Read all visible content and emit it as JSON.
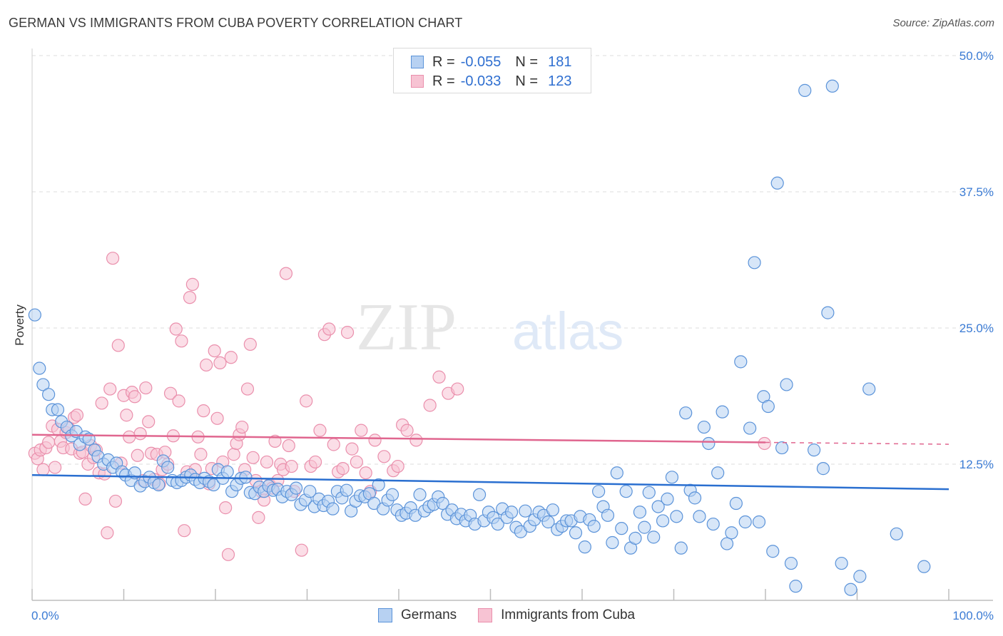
{
  "header": {
    "title": "GERMAN VS IMMIGRANTS FROM CUBA POVERTY CORRELATION CHART",
    "source": "Source: ZipAtlas.com"
  },
  "watermark": {
    "zip": "ZIP",
    "atlas": "atlas"
  },
  "legend": {
    "rows": [
      {
        "r_label": "R =",
        "r_value": "-0.055",
        "n_label": "N =",
        "n_value": "181"
      },
      {
        "r_label": "R =",
        "r_value": "-0.033",
        "n_label": "N =",
        "n_value": "123"
      }
    ],
    "bottom": [
      "Germans",
      "Immigrants from Cuba"
    ]
  },
  "colors": {
    "germans_fill": "#b7d1f2",
    "germans_stroke": "#5b93d9",
    "germans_line": "#2a6fd0",
    "cuba_fill": "#f7c3d3",
    "cuba_stroke": "#ea8fac",
    "cuba_line": "#e0668f",
    "tick": "#3b7bd4",
    "grid": "#dddddd"
  },
  "chart_data": {
    "type": "scatter",
    "title": "GERMAN VS IMMIGRANTS FROM CUBA POVERTY CORRELATION CHART",
    "xlabel": "",
    "ylabel": "Poverty",
    "xlim": [
      0,
      100
    ],
    "ylim": [
      0,
      50
    ],
    "x_tick_labels": [
      "0.0%",
      "100.0%"
    ],
    "y_ticks": [
      12.5,
      25,
      37.5,
      50
    ],
    "y_tick_labels": [
      "12.5%",
      "25.0%",
      "37.5%",
      "50.0%"
    ],
    "grid": "horizontal dashed",
    "legend_position": "top-center",
    "series": [
      {
        "name": "Germans",
        "trend": {
          "x": [
            0,
            100
          ],
          "y": [
            11.5,
            10.2
          ]
        },
        "points": [
          [
            0.3,
            26.2
          ],
          [
            0.8,
            21.3
          ],
          [
            1.2,
            19.8
          ],
          [
            1.8,
            18.9
          ],
          [
            2.2,
            17.5
          ],
          [
            2.8,
            17.5
          ],
          [
            3.2,
            16.4
          ],
          [
            3.8,
            15.9
          ],
          [
            4.3,
            15.1
          ],
          [
            4.8,
            15.5
          ],
          [
            5.2,
            14.3
          ],
          [
            5.8,
            15.0
          ],
          [
            6.2,
            14.8
          ],
          [
            6.8,
            13.8
          ],
          [
            7.2,
            13.2
          ],
          [
            7.8,
            12.5
          ],
          [
            8.3,
            12.9
          ],
          [
            8.8,
            12.2
          ],
          [
            9.2,
            12.6
          ],
          [
            9.8,
            11.8
          ],
          [
            10.2,
            11.5
          ],
          [
            10.8,
            11.0
          ],
          [
            11.2,
            11.7
          ],
          [
            11.8,
            10.5
          ],
          [
            12.3,
            10.9
          ],
          [
            12.8,
            11.3
          ],
          [
            13.3,
            10.8
          ],
          [
            13.8,
            10.6
          ],
          [
            14.3,
            12.8
          ],
          [
            14.8,
            12.2
          ],
          [
            15.3,
            11.0
          ],
          [
            15.8,
            10.8
          ],
          [
            16.3,
            11.0
          ],
          [
            16.8,
            11.3
          ],
          [
            17.3,
            11.5
          ],
          [
            17.8,
            11.1
          ],
          [
            18.3,
            10.8
          ],
          [
            18.8,
            11.2
          ],
          [
            19.3,
            10.9
          ],
          [
            19.8,
            10.6
          ],
          [
            20.3,
            12.0
          ],
          [
            20.8,
            11.2
          ],
          [
            21.3,
            11.8
          ],
          [
            21.8,
            10.0
          ],
          [
            22.3,
            10.6
          ],
          [
            22.8,
            11.2
          ],
          [
            23.3,
            11.3
          ],
          [
            23.8,
            9.9
          ],
          [
            24.3,
            9.8
          ],
          [
            24.8,
            10.4
          ],
          [
            25.3,
            10.0
          ],
          [
            25.8,
            10.5
          ],
          [
            26.3,
            10.1
          ],
          [
            26.8,
            10.2
          ],
          [
            27.3,
            9.5
          ],
          [
            27.8,
            10.0
          ],
          [
            28.3,
            9.7
          ],
          [
            28.8,
            10.3
          ],
          [
            29.3,
            8.8
          ],
          [
            29.8,
            9.2
          ],
          [
            30.3,
            10.0
          ],
          [
            30.8,
            8.6
          ],
          [
            31.3,
            9.3
          ],
          [
            31.8,
            8.7
          ],
          [
            32.3,
            9.1
          ],
          [
            32.8,
            8.4
          ],
          [
            33.3,
            10.0
          ],
          [
            33.8,
            9.4
          ],
          [
            34.3,
            10.1
          ],
          [
            34.8,
            8.2
          ],
          [
            35.3,
            9.1
          ],
          [
            35.8,
            9.6
          ],
          [
            36.3,
            9.5
          ],
          [
            36.8,
            9.8
          ],
          [
            37.3,
            8.9
          ],
          [
            37.8,
            10.6
          ],
          [
            38.3,
            8.4
          ],
          [
            38.8,
            9.2
          ],
          [
            39.3,
            9.7
          ],
          [
            39.8,
            8.3
          ],
          [
            40.3,
            7.8
          ],
          [
            40.8,
            8.0
          ],
          [
            41.3,
            8.5
          ],
          [
            41.8,
            7.8
          ],
          [
            42.3,
            9.7
          ],
          [
            42.8,
            8.2
          ],
          [
            43.3,
            8.6
          ],
          [
            43.8,
            8.8
          ],
          [
            44.3,
            9.5
          ],
          [
            44.8,
            8.9
          ],
          [
            45.3,
            7.9
          ],
          [
            45.8,
            8.3
          ],
          [
            46.3,
            7.5
          ],
          [
            46.8,
            7.9
          ],
          [
            47.3,
            7.3
          ],
          [
            47.8,
            7.8
          ],
          [
            48.3,
            7.0
          ],
          [
            48.8,
            9.7
          ],
          [
            49.3,
            7.3
          ],
          [
            49.8,
            8.1
          ],
          [
            50.3,
            7.6
          ],
          [
            50.8,
            7.0
          ],
          [
            51.3,
            8.4
          ],
          [
            51.8,
            7.6
          ],
          [
            52.3,
            8.1
          ],
          [
            52.8,
            6.7
          ],
          [
            53.3,
            6.3
          ],
          [
            53.8,
            8.2
          ],
          [
            54.3,
            6.8
          ],
          [
            54.8,
            7.4
          ],
          [
            55.3,
            8.1
          ],
          [
            55.8,
            7.8
          ],
          [
            56.3,
            7.2
          ],
          [
            56.8,
            8.3
          ],
          [
            57.3,
            6.5
          ],
          [
            57.8,
            6.8
          ],
          [
            58.3,
            7.3
          ],
          [
            58.8,
            7.3
          ],
          [
            59.3,
            6.2
          ],
          [
            59.8,
            7.7
          ],
          [
            60.3,
            4.9
          ],
          [
            60.8,
            7.4
          ],
          [
            61.3,
            6.8
          ],
          [
            61.8,
            10.0
          ],
          [
            62.3,
            8.6
          ],
          [
            62.8,
            7.8
          ],
          [
            63.3,
            5.3
          ],
          [
            63.8,
            11.7
          ],
          [
            64.3,
            6.6
          ],
          [
            64.8,
            10.0
          ],
          [
            65.3,
            4.8
          ],
          [
            65.8,
            5.7
          ],
          [
            66.3,
            8.1
          ],
          [
            66.8,
            6.7
          ],
          [
            67.3,
            9.9
          ],
          [
            67.8,
            5.8
          ],
          [
            68.3,
            8.6
          ],
          [
            68.8,
            7.3
          ],
          [
            69.3,
            9.3
          ],
          [
            69.8,
            11.3
          ],
          [
            70.3,
            7.7
          ],
          [
            70.8,
            4.8
          ],
          [
            71.3,
            17.2
          ],
          [
            71.8,
            10.1
          ],
          [
            72.3,
            9.4
          ],
          [
            72.8,
            7.7
          ],
          [
            73.3,
            15.9
          ],
          [
            73.8,
            14.4
          ],
          [
            74.3,
            7.0
          ],
          [
            74.8,
            11.7
          ],
          [
            75.3,
            17.3
          ],
          [
            75.8,
            5.2
          ],
          [
            76.3,
            6.2
          ],
          [
            76.8,
            8.9
          ],
          [
            77.3,
            21.9
          ],
          [
            77.8,
            7.2
          ],
          [
            78.3,
            15.8
          ],
          [
            78.8,
            31.0
          ],
          [
            79.3,
            7.2
          ],
          [
            79.8,
            18.7
          ],
          [
            80.3,
            17.8
          ],
          [
            80.8,
            4.5
          ],
          [
            81.3,
            38.3
          ],
          [
            81.8,
            14.0
          ],
          [
            82.3,
            19.8
          ],
          [
            82.8,
            3.4
          ],
          [
            83.3,
            1.3
          ],
          [
            84.3,
            46.8
          ],
          [
            85.3,
            13.8
          ],
          [
            86.3,
            12.1
          ],
          [
            86.8,
            26.4
          ],
          [
            87.3,
            47.2
          ],
          [
            88.3,
            3.4
          ],
          [
            89.3,
            1.0
          ],
          [
            90.3,
            2.2
          ],
          [
            91.3,
            19.4
          ],
          [
            94.3,
            6.1
          ],
          [
            97.3,
            3.1
          ]
        ]
      },
      {
        "name": "Immigrants from Cuba",
        "trend": {
          "x": [
            0,
            80
          ],
          "y": [
            15.2,
            14.5
          ]
        },
        "points": [
          [
            0.3,
            13.5
          ],
          [
            0.6,
            13.0
          ],
          [
            0.9,
            13.8
          ],
          [
            1.2,
            12.0
          ],
          [
            1.5,
            14.0
          ],
          [
            1.8,
            14.5
          ],
          [
            2.2,
            16.0
          ],
          [
            2.5,
            12.2
          ],
          [
            2.8,
            15.7
          ],
          [
            3.1,
            14.6
          ],
          [
            3.4,
            14.0
          ],
          [
            3.7,
            15.4
          ],
          [
            4.0,
            15.8
          ],
          [
            4.3,
            13.9
          ],
          [
            4.6,
            16.8
          ],
          [
            4.9,
            17.0
          ],
          [
            5.2,
            13.5
          ],
          [
            5.5,
            13.6
          ],
          [
            5.8,
            9.3
          ],
          [
            6.1,
            12.5
          ],
          [
            6.4,
            14.2
          ],
          [
            6.7,
            13.1
          ],
          [
            7.0,
            13.8
          ],
          [
            7.3,
            11.7
          ],
          [
            7.6,
            18.1
          ],
          [
            7.9,
            11.6
          ],
          [
            8.2,
            6.2
          ],
          [
            8.5,
            19.4
          ],
          [
            8.8,
            31.4
          ],
          [
            9.1,
            9.1
          ],
          [
            9.4,
            23.4
          ],
          [
            9.7,
            12.6
          ],
          [
            10.0,
            18.8
          ],
          [
            10.3,
            17.0
          ],
          [
            10.6,
            15.0
          ],
          [
            10.9,
            19.1
          ],
          [
            11.2,
            18.7
          ],
          [
            11.5,
            13.3
          ],
          [
            11.8,
            15.3
          ],
          [
            12.1,
            11.0
          ],
          [
            12.4,
            19.5
          ],
          [
            12.7,
            16.4
          ],
          [
            13.0,
            13.5
          ],
          [
            13.3,
            11.1
          ],
          [
            13.6,
            13.4
          ],
          [
            13.9,
            10.7
          ],
          [
            14.2,
            12.0
          ],
          [
            14.5,
            13.6
          ],
          [
            14.8,
            12.5
          ],
          [
            15.1,
            19.0
          ],
          [
            15.4,
            15.1
          ],
          [
            15.7,
            24.9
          ],
          [
            16.0,
            18.3
          ],
          [
            16.3,
            23.8
          ],
          [
            16.6,
            6.4
          ],
          [
            16.9,
            11.8
          ],
          [
            17.2,
            27.8
          ],
          [
            17.5,
            29.0
          ],
          [
            17.8,
            12.0
          ],
          [
            18.1,
            15.0
          ],
          [
            18.4,
            13.4
          ],
          [
            18.7,
            17.4
          ],
          [
            19.0,
            21.6
          ],
          [
            19.3,
            10.7
          ],
          [
            19.6,
            12.1
          ],
          [
            19.9,
            22.9
          ],
          [
            20.2,
            16.7
          ],
          [
            20.5,
            21.8
          ],
          [
            20.8,
            12.7
          ],
          [
            21.1,
            8.5
          ],
          [
            21.4,
            4.2
          ],
          [
            21.7,
            22.3
          ],
          [
            22.0,
            13.4
          ],
          [
            22.3,
            14.4
          ],
          [
            22.6,
            15.2
          ],
          [
            22.9,
            15.9
          ],
          [
            23.2,
            12.0
          ],
          [
            23.5,
            19.4
          ],
          [
            23.8,
            23.5
          ],
          [
            24.1,
            13.1
          ],
          [
            24.4,
            11.0
          ],
          [
            24.7,
            7.6
          ],
          [
            25.0,
            10.0
          ],
          [
            25.3,
            9.2
          ],
          [
            25.6,
            12.7
          ],
          [
            25.9,
            10.6
          ],
          [
            26.2,
            10.3
          ],
          [
            26.5,
            14.6
          ],
          [
            26.8,
            11.0
          ],
          [
            27.1,
            12.5
          ],
          [
            27.4,
            12.0
          ],
          [
            27.7,
            30.0
          ],
          [
            28.0,
            14.2
          ],
          [
            28.3,
            12.3
          ],
          [
            28.6,
            10.0
          ],
          [
            29.4,
            4.6
          ],
          [
            29.9,
            18.3
          ],
          [
            30.4,
            12.3
          ],
          [
            30.9,
            12.7
          ],
          [
            31.4,
            15.6
          ],
          [
            31.9,
            24.4
          ],
          [
            32.4,
            24.9
          ],
          [
            32.9,
            14.3
          ],
          [
            33.4,
            11.8
          ],
          [
            33.9,
            12.1
          ],
          [
            34.4,
            24.6
          ],
          [
            34.9,
            13.9
          ],
          [
            35.4,
            12.7
          ],
          [
            35.9,
            15.6
          ],
          [
            36.4,
            11.7
          ],
          [
            36.9,
            10.0
          ],
          [
            37.4,
            14.7
          ],
          [
            38.4,
            13.2
          ],
          [
            39.4,
            11.9
          ],
          [
            39.9,
            12.3
          ],
          [
            40.4,
            16.1
          ],
          [
            40.9,
            15.6
          ],
          [
            41.9,
            14.7
          ],
          [
            43.4,
            17.9
          ],
          [
            44.4,
            20.5
          ],
          [
            45.4,
            19.0
          ],
          [
            46.4,
            19.4
          ],
          [
            79.9,
            14.4
          ]
        ]
      }
    ]
  }
}
